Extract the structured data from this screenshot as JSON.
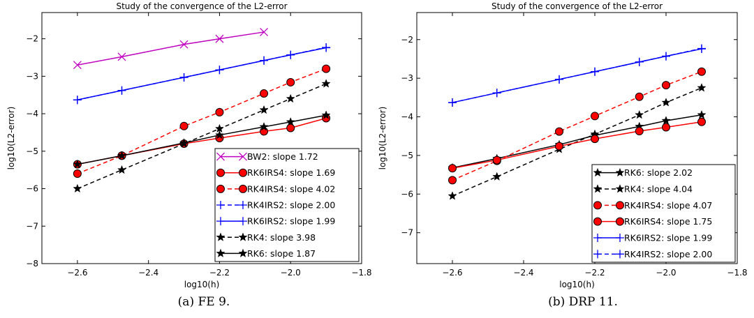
{
  "chart_data": [
    {
      "type": "line",
      "title": "Study of the convergence of the L2-error",
      "xlabel": "log10(h)",
      "ylabel": "log10(L2-error)",
      "caption": "(a) FE 9.",
      "xlim": [
        -2.7,
        -1.8
      ],
      "ylim": [
        -8,
        -1.3
      ],
      "xticks": [
        -2.6,
        -2.4,
        -2.2,
        -2.0,
        -1.8
      ],
      "xtick_labels": [
        "−2.6",
        "−2.4",
        "−2.2",
        "−2.0",
        "−1.8"
      ],
      "yticks": [
        -8,
        -7,
        -6,
        -5,
        -4,
        -3,
        -2
      ],
      "ytick_labels": [
        "−8",
        "−7",
        "−6",
        "−5",
        "−4",
        "−3",
        "−2"
      ],
      "legend_position": "bottom-right",
      "series": [
        {
          "name": "BW2: slope 1.72",
          "color": "#bf00bf",
          "dash": "solid",
          "marker": "x",
          "x": [
            -2.6,
            -2.475,
            -2.3,
            -2.2,
            -2.075
          ],
          "y": [
            -2.7,
            -2.48,
            -2.15,
            -2.0,
            -1.82
          ]
        },
        {
          "name": "RK6IRS4: slope 1.69",
          "color": "#ff0000",
          "dash": "solid",
          "marker": "circle",
          "x": [
            -2.6,
            -2.475,
            -2.3,
            -2.2,
            -2.075,
            -2.0,
            -1.9
          ],
          "y": [
            -5.35,
            -5.12,
            -4.8,
            -4.65,
            -4.47,
            -4.38,
            -4.12
          ]
        },
        {
          "name": "RK4IRS4: slope 4.02",
          "color": "#ff0000",
          "dash": "dashed",
          "marker": "circle",
          "x": [
            -2.6,
            -2.475,
            -2.3,
            -2.2,
            -2.075,
            -2.0,
            -1.9
          ],
          "y": [
            -5.6,
            -5.12,
            -4.33,
            -3.96,
            -3.46,
            -3.16,
            -2.8
          ]
        },
        {
          "name": "RK4IRS2: slope 2.00",
          "color": "#0000ff",
          "dash": "dashed",
          "marker": "plus",
          "x": [
            -2.6,
            -2.475,
            -2.3,
            -2.2,
            -2.075,
            -2.0,
            -1.9
          ],
          "y": [
            -3.63,
            -3.38,
            -3.03,
            -2.83,
            -2.58,
            -2.43,
            -2.23
          ]
        },
        {
          "name": "RK6IRS2: slope 1.99",
          "color": "#0000ff",
          "dash": "solid",
          "marker": "plus",
          "x": [
            -2.6,
            -2.475,
            -2.3,
            -2.2,
            -2.075,
            -2.0,
            -1.9
          ],
          "y": [
            -3.63,
            -3.38,
            -3.03,
            -2.83,
            -2.58,
            -2.43,
            -2.24
          ]
        },
        {
          "name": "RK4: slope 3.98",
          "color": "#000000",
          "dash": "dashed",
          "marker": "star",
          "x": [
            -2.6,
            -2.475,
            -2.3,
            -2.2,
            -2.075,
            -2.0,
            -1.9
          ],
          "y": [
            -6.0,
            -5.5,
            -4.8,
            -4.4,
            -3.9,
            -3.6,
            -3.2
          ]
        },
        {
          "name": "RK6: slope 1.87",
          "color": "#000000",
          "dash": "solid",
          "marker": "star",
          "x": [
            -2.6,
            -2.475,
            -2.3,
            -2.2,
            -2.075,
            -2.0,
            -1.9
          ],
          "y": [
            -5.35,
            -5.12,
            -4.78,
            -4.57,
            -4.35,
            -4.22,
            -4.04
          ]
        }
      ]
    },
    {
      "type": "line",
      "title": "Study of the convergence of the L2-error",
      "xlabel": "log10(h)",
      "ylabel": "log10(L2-error)",
      "caption": "(b) DRP 11.",
      "xlim": [
        -2.7,
        -1.8
      ],
      "ylim": [
        -7.8,
        -1.3
      ],
      "xticks": [
        -2.6,
        -2.4,
        -2.2,
        -2.0,
        -1.8
      ],
      "xtick_labels": [
        "−2.6",
        "−2.4",
        "−2.2",
        "−2.0",
        "−1.8"
      ],
      "yticks": [
        -7,
        -6,
        -5,
        -4,
        -3,
        -2
      ],
      "ytick_labels": [
        "−7",
        "−6",
        "−5",
        "−4",
        "−3",
        "−2"
      ],
      "legend_position": "bottom-right",
      "series": [
        {
          "name": "RK6: slope 2.02",
          "color": "#000000",
          "dash": "solid",
          "marker": "star",
          "x": [
            -2.6,
            -2.475,
            -2.3,
            -2.2,
            -2.075,
            -2.0,
            -1.9
          ],
          "y": [
            -5.32,
            -5.08,
            -4.72,
            -4.48,
            -4.25,
            -4.1,
            -3.95
          ]
        },
        {
          "name": "RK4: slope 4.04",
          "color": "#000000",
          "dash": "dashed",
          "marker": "star",
          "x": [
            -2.6,
            -2.475,
            -2.3,
            -2.2,
            -2.075,
            -2.0,
            -1.9
          ],
          "y": [
            -6.05,
            -5.55,
            -4.84,
            -4.45,
            -3.95,
            -3.63,
            -3.25
          ]
        },
        {
          "name": "RK4IRS4: slope 4.07",
          "color": "#ff0000",
          "dash": "dashed",
          "marker": "circle",
          "x": [
            -2.6,
            -2.475,
            -2.3,
            -2.2,
            -2.075,
            -2.0,
            -1.9
          ],
          "y": [
            -5.64,
            -5.14,
            -4.38,
            -3.98,
            -3.48,
            -3.18,
            -2.83
          ]
        },
        {
          "name": "RK6IRS4: slope 1.75",
          "color": "#ff0000",
          "dash": "solid",
          "marker": "circle",
          "x": [
            -2.6,
            -2.475,
            -2.3,
            -2.2,
            -2.075,
            -2.0,
            -1.9
          ],
          "y": [
            -5.33,
            -5.12,
            -4.76,
            -4.57,
            -4.37,
            -4.27,
            -4.13
          ]
        },
        {
          "name": "RK6IRS2: slope 1.99",
          "color": "#0000ff",
          "dash": "solid",
          "marker": "plus",
          "x": [
            -2.6,
            -2.475,
            -2.3,
            -2.2,
            -2.075,
            -2.0,
            -1.9
          ],
          "y": [
            -3.63,
            -3.38,
            -3.03,
            -2.83,
            -2.58,
            -2.43,
            -2.24
          ]
        },
        {
          "name": "RK4IRS2: slope 2.00",
          "color": "#0000ff",
          "dash": "dashed",
          "marker": "plus",
          "x": [
            -2.6,
            -2.475,
            -2.3,
            -2.2,
            -2.075,
            -2.0,
            -1.9
          ],
          "y": [
            -3.63,
            -3.38,
            -3.03,
            -2.83,
            -2.58,
            -2.43,
            -2.23
          ]
        }
      ]
    }
  ]
}
